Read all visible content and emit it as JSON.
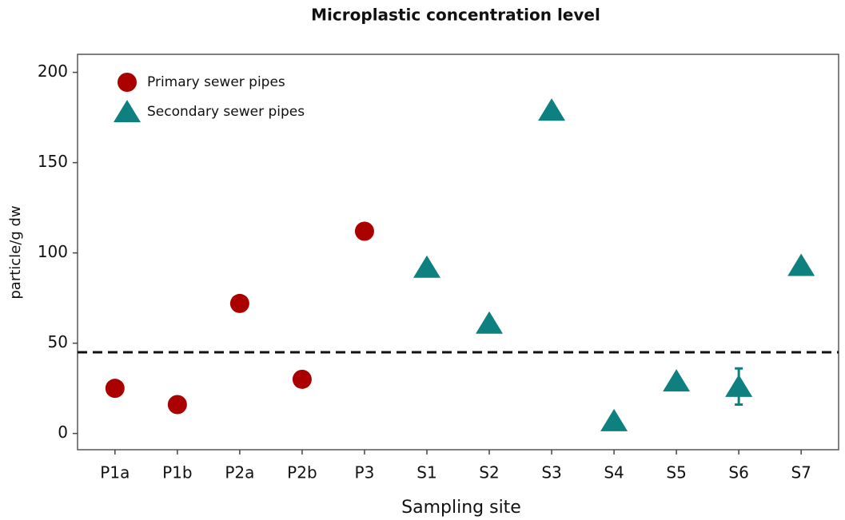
{
  "chart_data": {
    "type": "scatter",
    "title": "Microplastic concentration level",
    "xlabel": "Sampling site",
    "ylabel": "particle/g dw",
    "categories": [
      "P1a",
      "P1b",
      "P2a",
      "P2b",
      "P3",
      "S1",
      "S2",
      "S3",
      "S4",
      "S5",
      "S6",
      "S7"
    ],
    "series": [
      {
        "name": "Primary sewer pipes",
        "color": "#aa0000",
        "marker": "circle",
        "values": [
          25,
          16,
          72,
          30,
          112,
          null,
          null,
          null,
          null,
          null,
          null,
          null
        ]
      },
      {
        "name": "Secondary sewer pipes",
        "color": "#0e8080",
        "marker": "triangle",
        "values": [
          null,
          null,
          null,
          null,
          null,
          92,
          61,
          179,
          7,
          29,
          26,
          93
        ],
        "errors": [
          null,
          null,
          null,
          null,
          null,
          null,
          null,
          null,
          null,
          null,
          10,
          null
        ]
      }
    ],
    "hline": 45,
    "ylim": [
      -9,
      210
    ],
    "yticks": [
      0,
      50,
      100,
      150,
      200
    ],
    "legend": "upper left"
  }
}
